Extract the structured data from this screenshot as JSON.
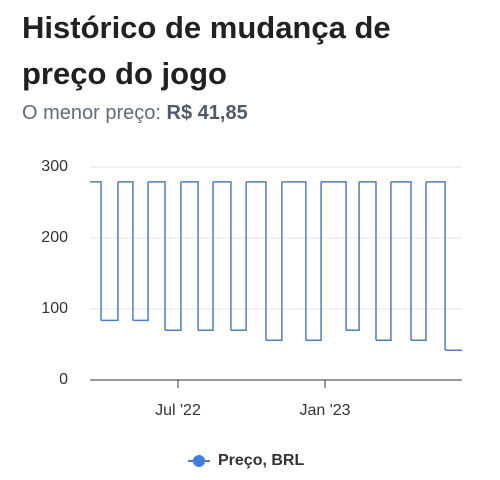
{
  "header": {
    "title_line1": "Histórico de mudança de",
    "title_line2": "preço do jogo",
    "subtitle_label": "O menor preço:",
    "lowest_price": "R$ 41,85"
  },
  "chart_data": {
    "type": "step",
    "step": "post",
    "x": [
      2.41,
      2.86,
      3.55,
      4.16,
      4.78,
      5.47,
      6.12,
      6.82,
      7.43,
      8.16,
      8.78,
      9.59,
      10.24,
      11.22,
      11.84,
      12.86,
      13.39,
      14.08,
      14.69,
      15.51,
      16.12,
      16.9,
      17.59
    ],
    "series": [
      {
        "name": "Preço, BRL",
        "color": "#4a7fc1",
        "values": [
          279,
          84,
          279,
          84,
          279,
          70,
          279,
          70,
          279,
          70,
          279,
          56,
          279,
          56,
          279,
          70,
          279,
          56,
          279,
          56,
          279,
          41.85,
          41.85
        ]
      }
    ],
    "xlim": [
      2.41,
      17.59
    ],
    "xticks": [
      {
        "value": 6,
        "label": "Jul '22"
      },
      {
        "value": 12,
        "label": "Jan '23"
      }
    ],
    "ylim": [
      0,
      300
    ],
    "yticks": [
      0,
      100,
      200,
      300
    ],
    "grid": true,
    "legend": "bottom"
  }
}
